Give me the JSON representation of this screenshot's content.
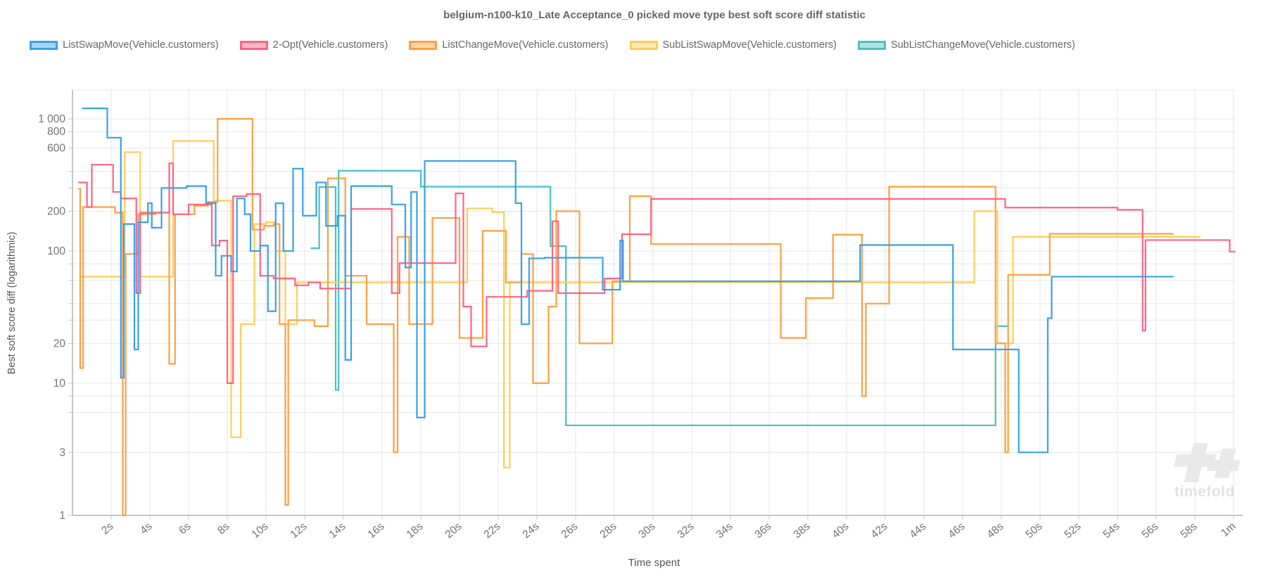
{
  "title": "belgium-n100-k10_Late Acceptance_0 picked move type best soft score diff statistic",
  "watermark": {
    "text": "timefold"
  },
  "colors": {
    "title_text": "#666666",
    "tick_text": "#737373",
    "axis_title_text": "#555555",
    "grid_line": "#e7e7e7",
    "axis_border": "#b4b4b4",
    "tick_mark": "#c9c9c9",
    "watermark": "#e9e9e9"
  },
  "legend": {
    "items": [
      {
        "label": "ListSwapMove(Vehicle.customers)",
        "color": "#36A2EB",
        "fill": "rgba(54,162,235,0.45)"
      },
      {
        "label": "2-Opt(Vehicle.customers)",
        "color": "#FF6384",
        "fill": "rgba(255,99,132,0.45)"
      },
      {
        "label": "ListChangeMove(Vehicle.customers)",
        "color": "#FF9F40",
        "fill": "rgba(255,159,64,0.45)"
      },
      {
        "label": "SubListSwapMove(Vehicle.customers)",
        "color": "#FFCD56",
        "fill": "rgba(255,205,86,0.45)"
      },
      {
        "label": "SubListChangeMove(Vehicle.customers)",
        "color": "#4BC0C0",
        "fill": "rgba(75,192,192,0.45)"
      }
    ]
  },
  "chart_data": {
    "type": "line",
    "step": true,
    "title": "belgium-n100-k10_Late Acceptance_0 picked move type best soft score diff statistic",
    "xlabel": "Time spent",
    "ylabel": "Best soft score diff (logarithmic)",
    "x_axis": {
      "unit": "seconds",
      "min": 0,
      "max": 60.1,
      "tick_labels": [
        {
          "t": 2,
          "label": "2s"
        },
        {
          "t": 4,
          "label": "4s"
        },
        {
          "t": 6,
          "label": "6s"
        },
        {
          "t": 8,
          "label": "8s"
        },
        {
          "t": 10,
          "label": "10s"
        },
        {
          "t": 12,
          "label": "12s"
        },
        {
          "t": 14,
          "label": "14s"
        },
        {
          "t": 16,
          "label": "16s"
        },
        {
          "t": 18,
          "label": "18s"
        },
        {
          "t": 20,
          "label": "20s"
        },
        {
          "t": 22,
          "label": "22s"
        },
        {
          "t": 24,
          "label": "24s"
        },
        {
          "t": 26,
          "label": "26s"
        },
        {
          "t": 28,
          "label": "28s"
        },
        {
          "t": 30,
          "label": "30s"
        },
        {
          "t": 32,
          "label": "32s"
        },
        {
          "t": 34,
          "label": "34s"
        },
        {
          "t": 36,
          "label": "36s"
        },
        {
          "t": 38,
          "label": "38s"
        },
        {
          "t": 40,
          "label": "40s"
        },
        {
          "t": 42,
          "label": "42s"
        },
        {
          "t": 44,
          "label": "44s"
        },
        {
          "t": 46,
          "label": "46s"
        },
        {
          "t": 48,
          "label": "48s"
        },
        {
          "t": 50,
          "label": "50s"
        },
        {
          "t": 52,
          "label": "52s"
        },
        {
          "t": 54,
          "label": "54s"
        },
        {
          "t": 56,
          "label": "56s"
        },
        {
          "t": 58,
          "label": "58s"
        },
        {
          "t": 60,
          "label": "1m"
        }
      ]
    },
    "y_axis": {
      "scale": "logarithmic",
      "min": 1,
      "max": 1650,
      "gridlines": [
        1000,
        800,
        600,
        400,
        300,
        200,
        100,
        80,
        60,
        40,
        30,
        20,
        10,
        8,
        6,
        3,
        1
      ],
      "tick_labels": [
        {
          "v": 1000,
          "label": "1 000"
        },
        {
          "v": 800,
          "label": "800"
        },
        {
          "v": 600,
          "label": "600"
        },
        {
          "v": 200,
          "label": "200"
        },
        {
          "v": 100,
          "label": "100"
        },
        {
          "v": 20,
          "label": "20"
        },
        {
          "v": 10,
          "label": "10"
        },
        {
          "v": 3,
          "label": "3"
        },
        {
          "v": 1,
          "label": "1"
        }
      ]
    },
    "series": [
      {
        "name": "ListSwapMove(Vehicle.customers)",
        "key": "list-swap-move",
        "color": "#36A2EB",
        "points": [
          [
            0.5,
            1200
          ],
          [
            1.8,
            720
          ],
          [
            2.5,
            11
          ],
          [
            2.65,
            160
          ],
          [
            3.2,
            18
          ],
          [
            3.4,
            165
          ],
          [
            3.9,
            230
          ],
          [
            4.1,
            150
          ],
          [
            4.6,
            300
          ],
          [
            5.9,
            310
          ],
          [
            6.9,
            230
          ],
          [
            7.4,
            65
          ],
          [
            7.7,
            92
          ],
          [
            8.2,
            70
          ],
          [
            8.5,
            250
          ],
          [
            8.9,
            190
          ],
          [
            9.2,
            100
          ],
          [
            9.7,
            110
          ],
          [
            10.1,
            35
          ],
          [
            10.5,
            230
          ],
          [
            10.9,
            100
          ],
          [
            11.4,
            420
          ],
          [
            11.9,
            185
          ],
          [
            12.6,
            330
          ],
          [
            13.1,
            155
          ],
          [
            13.7,
            185
          ],
          [
            14.1,
            15
          ],
          [
            14.4,
            310
          ],
          [
            16.5,
            225
          ],
          [
            17.2,
            75
          ],
          [
            17.5,
            280
          ],
          [
            17.8,
            5.5
          ],
          [
            18.2,
            480
          ],
          [
            22.9,
            230
          ],
          [
            23.2,
            28
          ],
          [
            23.6,
            88
          ],
          [
            24.4,
            89
          ],
          [
            27.4,
            51
          ],
          [
            28.3,
            120
          ],
          [
            28.45,
            59
          ],
          [
            40.7,
            111
          ],
          [
            45.5,
            18
          ],
          [
            48.9,
            3
          ],
          [
            50.4,
            31
          ],
          [
            50.6,
            64
          ],
          [
            56.9,
            64
          ]
        ]
      },
      {
        "name": "2-Opt(Vehicle.customers)",
        "key": "two-opt",
        "color": "#FF6384",
        "points": [
          [
            0.3,
            330
          ],
          [
            0.75,
            215
          ],
          [
            1.0,
            450
          ],
          [
            2.1,
            280
          ],
          [
            2.5,
            250
          ],
          [
            3.3,
            48
          ],
          [
            3.5,
            195
          ],
          [
            5.0,
            460
          ],
          [
            5.2,
            190
          ],
          [
            6.0,
            225
          ],
          [
            7.2,
            110
          ],
          [
            7.6,
            120
          ],
          [
            8.0,
            10
          ],
          [
            8.3,
            260
          ],
          [
            9.0,
            270
          ],
          [
            9.7,
            65
          ],
          [
            10.4,
            62
          ],
          [
            11.5,
            55
          ],
          [
            12.2,
            58
          ],
          [
            12.8,
            52
          ],
          [
            14.4,
            208
          ],
          [
            16.5,
            48
          ],
          [
            16.9,
            81
          ],
          [
            19.8,
            273
          ],
          [
            20.2,
            38
          ],
          [
            20.6,
            19
          ],
          [
            21.4,
            45
          ],
          [
            23.5,
            50
          ],
          [
            24.8,
            168
          ],
          [
            25.1,
            48
          ],
          [
            27.5,
            62
          ],
          [
            28.4,
            134
          ],
          [
            29.9,
            248
          ],
          [
            48.2,
            213
          ],
          [
            54.0,
            205
          ],
          [
            55.3,
            25
          ],
          [
            55.45,
            121
          ],
          [
            59.8,
            99
          ],
          [
            60.1,
            99
          ]
        ]
      },
      {
        "name": "ListChangeMove(Vehicle.customers)",
        "key": "list-change-move",
        "color": "#FF9F40",
        "points": [
          [
            0.3,
            295
          ],
          [
            0.4,
            13
          ],
          [
            0.55,
            215
          ],
          [
            2.2,
            195
          ],
          [
            2.6,
            1
          ],
          [
            2.75,
            95
          ],
          [
            3.4,
            190
          ],
          [
            4.3,
            195
          ],
          [
            5.0,
            14
          ],
          [
            5.3,
            190
          ],
          [
            6.3,
            220
          ],
          [
            7.0,
            235
          ],
          [
            7.5,
            1000
          ],
          [
            9.3,
            145
          ],
          [
            9.9,
            155
          ],
          [
            10.4,
            160
          ],
          [
            10.7,
            28
          ],
          [
            11.0,
            1.2
          ],
          [
            11.15,
            30
          ],
          [
            12.5,
            27
          ],
          [
            13.2,
            355
          ],
          [
            14.1,
            65
          ],
          [
            15.2,
            28
          ],
          [
            16.6,
            3
          ],
          [
            16.8,
            128
          ],
          [
            17.4,
            28
          ],
          [
            18.6,
            178
          ],
          [
            20.0,
            22
          ],
          [
            21.2,
            142
          ],
          [
            22.4,
            58
          ],
          [
            23.2,
            95
          ],
          [
            23.8,
            10
          ],
          [
            24.6,
            38
          ],
          [
            25.0,
            200
          ],
          [
            26.2,
            20
          ],
          [
            27.9,
            59
          ],
          [
            28.8,
            260
          ],
          [
            29.9,
            113
          ],
          [
            36.6,
            22
          ],
          [
            37.9,
            44
          ],
          [
            39.3,
            133
          ],
          [
            40.8,
            8
          ],
          [
            41.0,
            40
          ],
          [
            42.2,
            307
          ],
          [
            47.7,
            20
          ],
          [
            48.2,
            3
          ],
          [
            48.35,
            66
          ],
          [
            50.5,
            135
          ],
          [
            56.9,
            135
          ]
        ]
      },
      {
        "name": "SubListSwapMove(Vehicle.customers)",
        "key": "sub-list-swap-move",
        "color": "#FFCD56",
        "points": [
          [
            0.4,
            64
          ],
          [
            2.7,
            560
          ],
          [
            3.5,
            64
          ],
          [
            5.2,
            680
          ],
          [
            7.3,
            240
          ],
          [
            8.2,
            3.9
          ],
          [
            8.7,
            28
          ],
          [
            9.4,
            160
          ],
          [
            10.0,
            165
          ],
          [
            10.5,
            100
          ],
          [
            11.0,
            28
          ],
          [
            11.6,
            58
          ],
          [
            20.4,
            210
          ],
          [
            21.7,
            197
          ],
          [
            22.3,
            2.3
          ],
          [
            22.6,
            58
          ],
          [
            46.6,
            200
          ],
          [
            47.8,
            20
          ],
          [
            48.6,
            128
          ],
          [
            58.3,
            128
          ]
        ]
      },
      {
        "name": "SubListChangeMove(Vehicle.customers)",
        "key": "sub-list-change-move",
        "color": "#4BC0C0",
        "points": [
          [
            12.3,
            105
          ],
          [
            12.75,
            305
          ],
          [
            13.6,
            8.9
          ],
          [
            13.75,
            405
          ],
          [
            18.0,
            307
          ],
          [
            24.7,
            109
          ],
          [
            25.5,
            4.8
          ],
          [
            47.7,
            27
          ],
          [
            48.4,
            27
          ]
        ]
      }
    ]
  }
}
